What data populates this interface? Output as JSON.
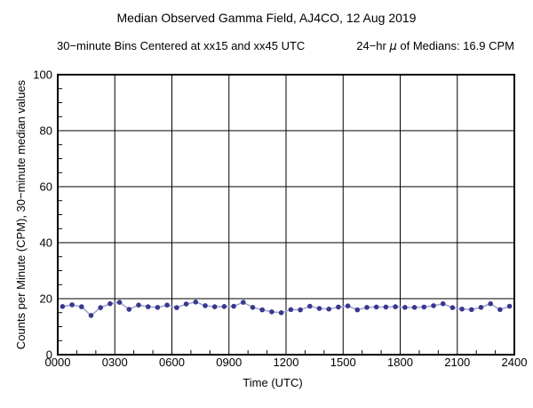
{
  "header": {
    "title": "Median Observed Gamma Field, AJ4CO, 12 Aug 2019",
    "subtitle_left": "30−minute Bins Centered at xx15 and xx45 UTC",
    "mean_prefix": "24−hr ",
    "mean_mu": "μ",
    "mean_suffix": " of Medians: 16.9 CPM"
  },
  "chart_data": {
    "type": "line",
    "title": "Median Observed Gamma Field, AJ4CO, 12 Aug 2019",
    "subtitle": "30−minute Bins Centered at xx15 and xx45 UTC",
    "mean_label": "24−hr μ of Medians: 16.9 CPM",
    "mean_cpm": 16.9,
    "xlabel": "Time (UTC)",
    "ylabel": "Counts per Minute (CPM), 30−minute median values",
    "xlim_hours": [
      0,
      24
    ],
    "ylim": [
      0,
      100
    ],
    "grid": "on",
    "x_tick_hours": [
      0,
      3,
      6,
      9,
      12,
      15,
      18,
      21,
      24
    ],
    "x_tick_labels": [
      "0000",
      "0300",
      "0600",
      "0900",
      "1200",
      "1500",
      "1800",
      "2100",
      "2400"
    ],
    "x_minor_step_hours": 1,
    "y_ticks": [
      0,
      20,
      40,
      60,
      80,
      100
    ],
    "y_minor_step": 5,
    "bin_minutes": 30,
    "bin_centers_utc": [
      "0015",
      "0045",
      "0115",
      "0145",
      "0215",
      "0245",
      "0315",
      "0345",
      "0415",
      "0445",
      "0515",
      "0545",
      "0615",
      "0645",
      "0715",
      "0745",
      "0815",
      "0845",
      "0915",
      "0945",
      "1015",
      "1045",
      "1115",
      "1145",
      "1215",
      "1245",
      "1315",
      "1345",
      "1415",
      "1445",
      "1515",
      "1545",
      "1615",
      "1645",
      "1715",
      "1745",
      "1815",
      "1845",
      "1915",
      "1945",
      "2015",
      "2045",
      "2115",
      "2145",
      "2215",
      "2245",
      "2315",
      "2345"
    ],
    "values": [
      17.2,
      17.8,
      17.1,
      14.0,
      16.8,
      18.2,
      18.7,
      16.2,
      17.7,
      17.1,
      16.9,
      17.7,
      16.8,
      18.1,
      18.8,
      17.5,
      17.1,
      17.2,
      17.3,
      18.7,
      16.9,
      16.0,
      15.3,
      15.0,
      16.1,
      16.0,
      17.3,
      16.5,
      16.3,
      17.0,
      17.4,
      16.0,
      16.9,
      17.0,
      17.0,
      17.1,
      16.9,
      16.9,
      17.0,
      17.5,
      18.2,
      16.8,
      16.3,
      16.1,
      16.9,
      18.2,
      16.1,
      17.3
    ],
    "colors": {
      "marker": "#38388e",
      "line": "#a6a6d2",
      "axis": "#000000",
      "grid": "#000000",
      "background": "#ffffff"
    }
  }
}
